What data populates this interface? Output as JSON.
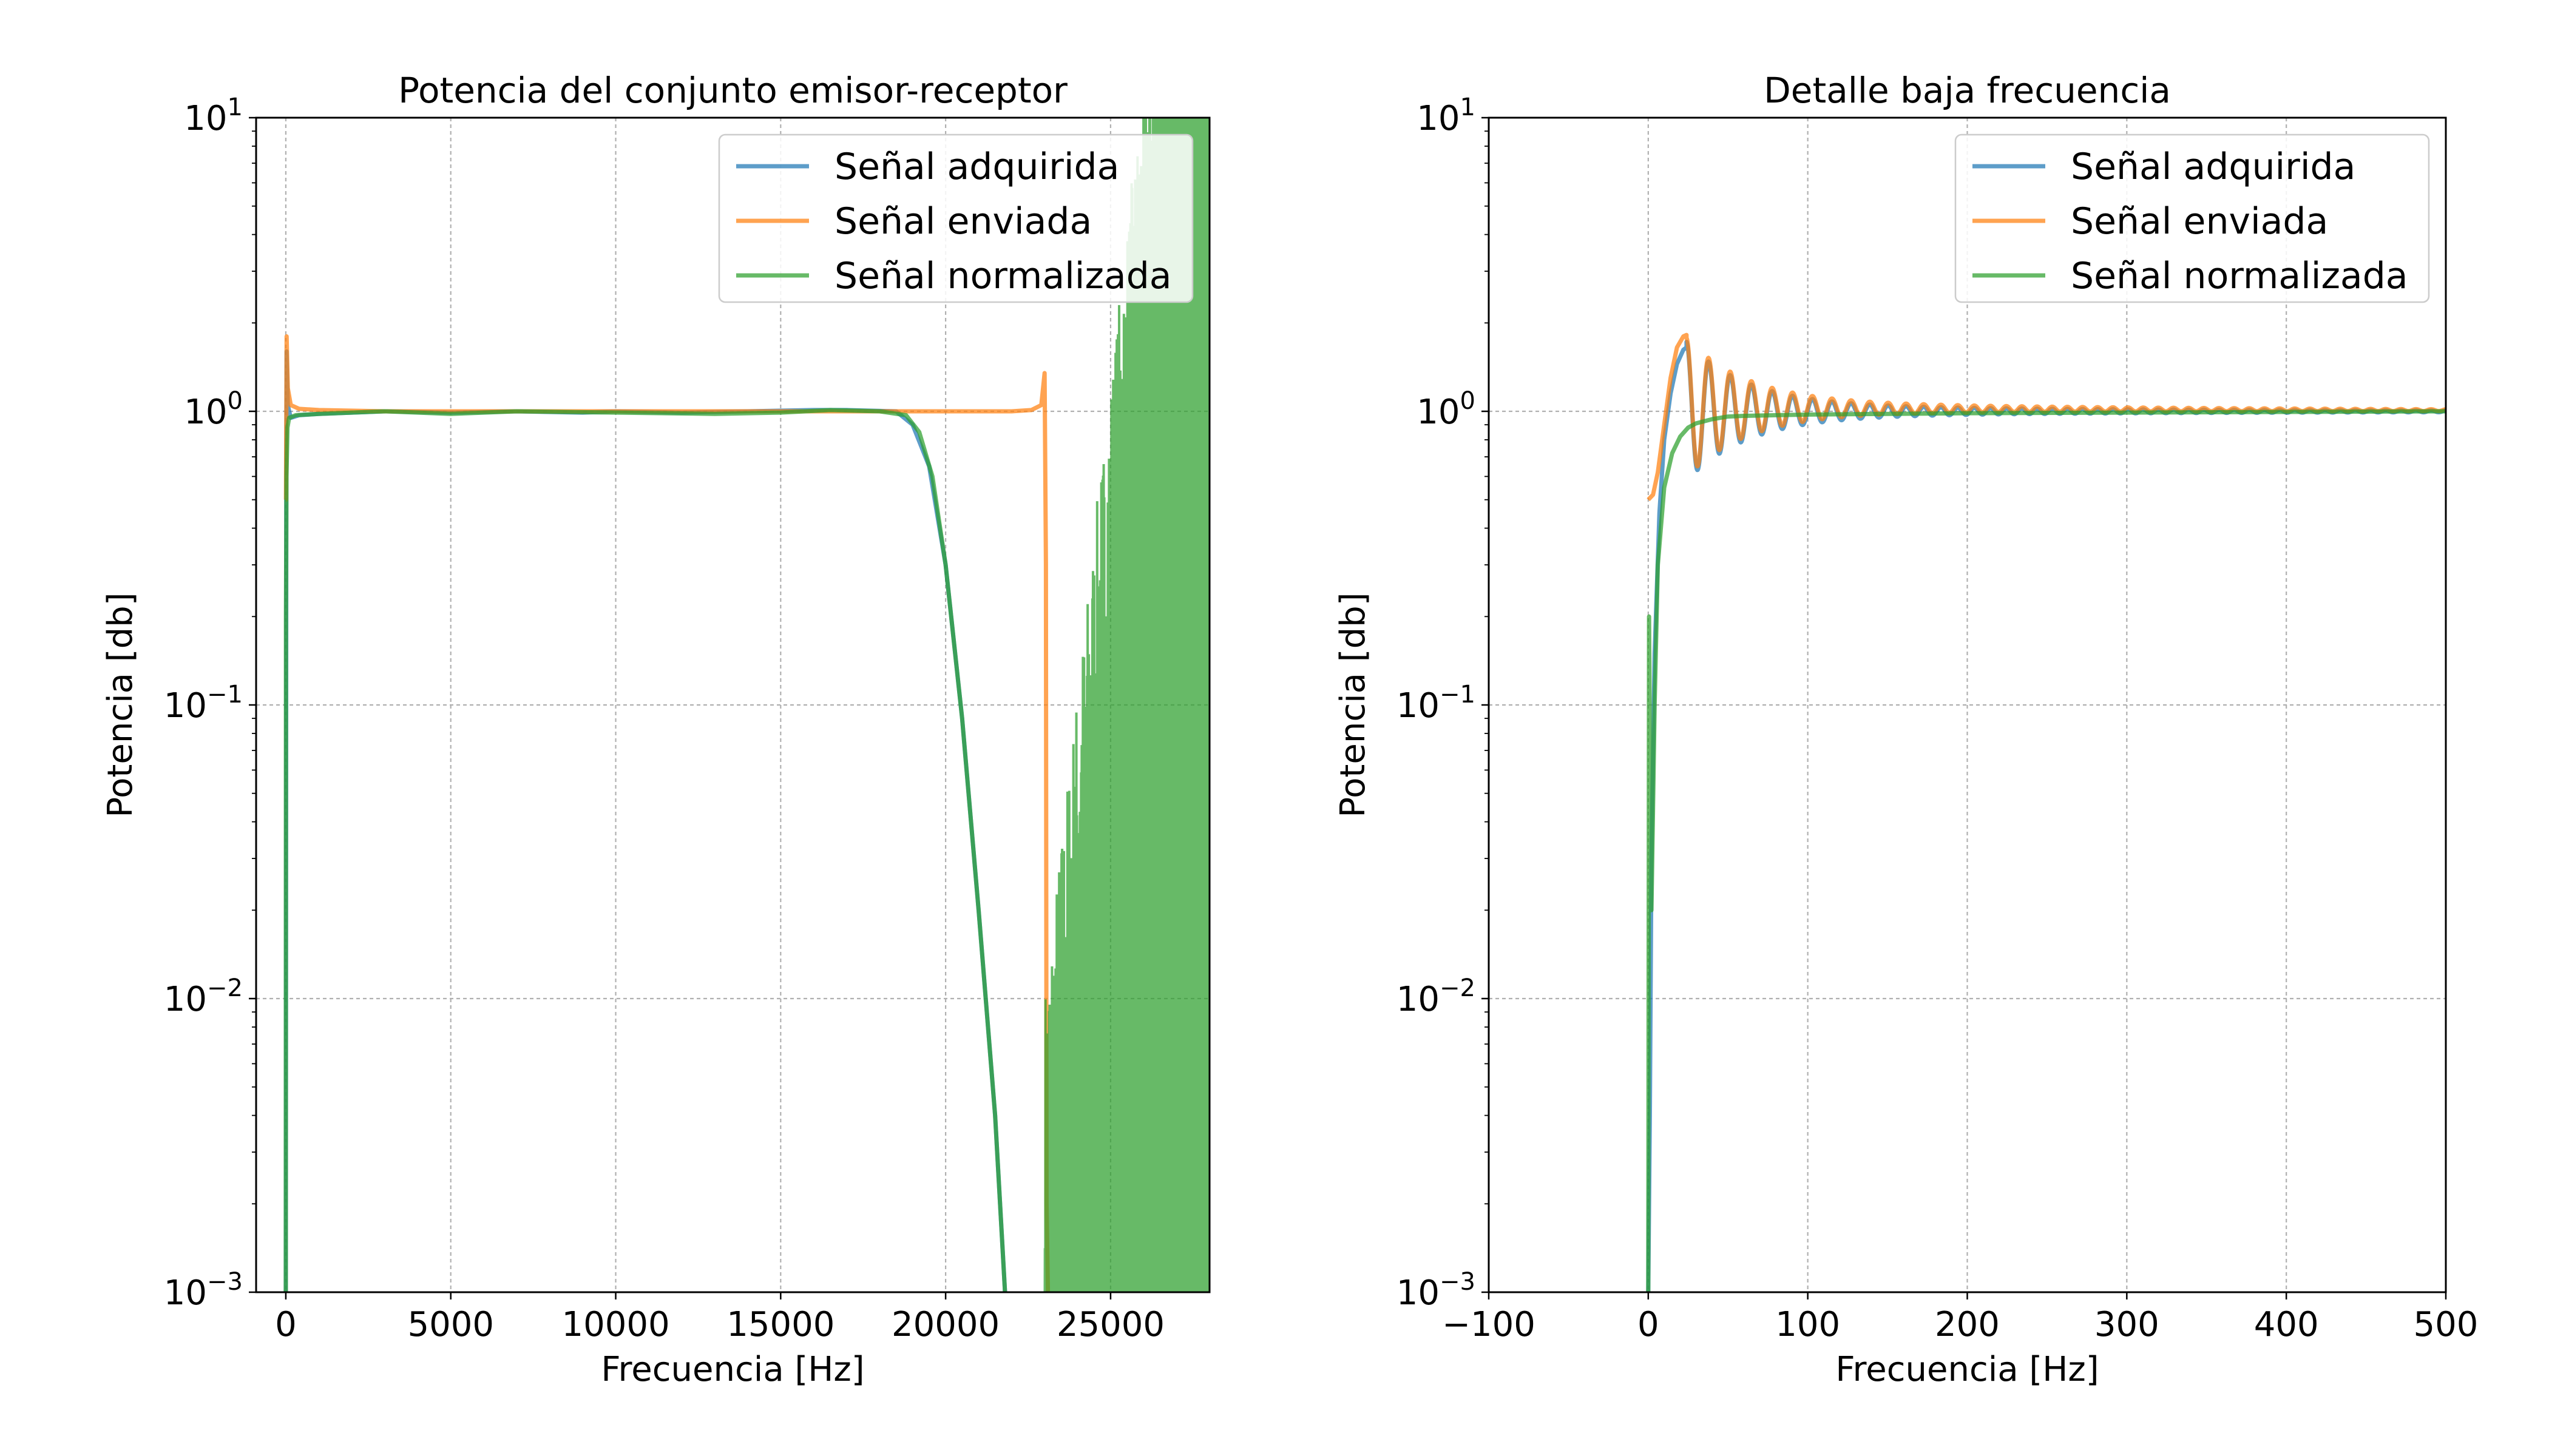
{
  "chart_data": [
    {
      "type": "line",
      "title": "Potencia del conjunto emisor-receptor",
      "xlabel": "Frecuencia [Hz]",
      "ylabel": "Potencia [db]",
      "xscale": "linear",
      "yscale": "log",
      "xlim": [
        -900,
        28000
      ],
      "ylim": [
        0.001,
        10
      ],
      "xticks": [
        0,
        5000,
        10000,
        15000,
        20000,
        25000
      ],
      "yticks": [
        {
          "value": 0.001,
          "base": "10",
          "exp": "−3"
        },
        {
          "value": 0.01,
          "base": "10",
          "exp": "−2"
        },
        {
          "value": 0.1,
          "base": "10",
          "exp": "−1"
        },
        {
          "value": 1,
          "base": "10",
          "exp": "0"
        },
        {
          "value": 10,
          "base": "10",
          "exp": "1"
        }
      ],
      "grid": true,
      "legend": "top-right",
      "series": [
        {
          "name": "Señal adquirida",
          "color": "#1f77b4",
          "x": [
            0,
            15,
            25,
            60,
            150,
            400,
            1000,
            2000,
            3000,
            5000,
            7000,
            9000,
            10000,
            12000,
            14000,
            16000,
            17000,
            18500,
            19000,
            19500,
            20000,
            20500,
            21000,
            21500,
            21800
          ],
          "y": [
            0.001,
            0.6,
            1.6,
            1.05,
            0.95,
            0.97,
            0.98,
            0.99,
            1.0,
            0.99,
            1.0,
            0.99,
            1.0,
            0.99,
            1.0,
            1.01,
            1.01,
            1.0,
            0.9,
            0.65,
            0.3,
            0.09,
            0.02,
            0.004,
            0.001
          ]
        },
        {
          "name": "Señal enviada",
          "color": "#ff7f0e",
          "x": [
            0,
            5,
            25,
            60,
            150,
            400,
            1000,
            3000,
            6000,
            10000,
            14000,
            18000,
            20000,
            21000,
            22000,
            22600,
            22900,
            23000,
            23040,
            23060,
            23100
          ],
          "y": [
            0.5,
            0.5,
            1.8,
            1.2,
            1.05,
            1.02,
            1.01,
            1.0,
            1.0,
            1.0,
            1.0,
            1.0,
            1.0,
            1.0,
            1.0,
            1.01,
            1.05,
            1.35,
            0.3,
            0.002,
            0.001
          ]
        },
        {
          "name": "Señal normalizada",
          "color": "#2ca02c",
          "x": [
            0,
            5,
            20,
            50,
            100,
            300,
            1000,
            3000,
            5000,
            7000,
            10000,
            13000,
            15000,
            16500,
            18000,
            18800,
            19200,
            19600,
            20000,
            20500,
            21000,
            21500,
            21800
          ],
          "y": [
            0.001,
            0.2,
            0.6,
            0.88,
            0.95,
            0.97,
            0.98,
            1.0,
            0.98,
            1.0,
            0.99,
            0.98,
            0.99,
            1.01,
            1.0,
            0.97,
            0.85,
            0.6,
            0.3,
            0.09,
            0.02,
            0.004,
            0.001
          ]
        }
      ],
      "noise_region": {
        "series": "Señal normalizada",
        "x_range": [
          23000,
          28000
        ],
        "color": "#2ca02c",
        "description": "dense oscillation rising from 10^-3 to above 10"
      }
    },
    {
      "type": "line",
      "title": "Detalle baja frecuencia",
      "xlabel": "Frecuencia [Hz]",
      "ylabel": "Potencia [db]",
      "xscale": "linear",
      "yscale": "log",
      "xlim": [
        -100,
        500
      ],
      "ylim": [
        0.001,
        10
      ],
      "xticks": [
        {
          "value": -100,
          "label": "−100"
        },
        {
          "value": 0,
          "label": "0"
        },
        {
          "value": 100,
          "label": "100"
        },
        {
          "value": 200,
          "label": "200"
        },
        {
          "value": 300,
          "label": "300"
        },
        {
          "value": 400,
          "label": "400"
        },
        {
          "value": 500,
          "label": "500"
        }
      ],
      "yticks": [
        {
          "value": 0.001,
          "base": "10",
          "exp": "−3"
        },
        {
          "value": 0.01,
          "base": "10",
          "exp": "−2"
        },
        {
          "value": 0.1,
          "base": "10",
          "exp": "−1"
        },
        {
          "value": 1,
          "base": "10",
          "exp": "0"
        },
        {
          "value": 10,
          "base": "10",
          "exp": "1"
        }
      ],
      "grid": true,
      "legend": "top-right",
      "series": [
        {
          "name": "Señal adquirida",
          "color": "#1f77b4",
          "x": [
            0,
            1,
            2,
            4,
            7,
            10,
            14,
            18,
            22,
            24
          ],
          "y": [
            0.001,
            0.004,
            0.03,
            0.15,
            0.45,
            0.8,
            1.15,
            1.45,
            1.62,
            1.65
          ],
          "ripple": {
            "x_start": 24,
            "x_end": 500,
            "period_start": 14,
            "period_end": 9.5,
            "amp_start": 0.5,
            "decay": 38,
            "bias": 0.0
          }
        },
        {
          "name": "Señal enviada",
          "color": "#ff7f0e",
          "x": [
            0,
            3,
            6,
            10,
            14,
            18,
            22,
            24
          ],
          "y": [
            0.5,
            0.52,
            0.62,
            0.9,
            1.3,
            1.65,
            1.8,
            1.82
          ],
          "ripple": {
            "x_start": 24,
            "x_end": 500,
            "period_start": 14,
            "period_end": 9.5,
            "amp_start": 0.5,
            "decay": 38,
            "bias": 0.03
          }
        },
        {
          "name": "Señal normalizada",
          "color": "#2ca02c",
          "x": [
            0,
            0.5,
            1,
            2,
            4,
            6,
            10,
            15,
            20,
            25,
            30,
            40,
            50,
            60,
            80,
            100,
            150,
            200,
            300,
            400,
            500
          ],
          "y": [
            0.001,
            0.2,
            0.08,
            0.02,
            0.1,
            0.3,
            0.55,
            0.72,
            0.82,
            0.88,
            0.91,
            0.94,
            0.96,
            0.965,
            0.97,
            0.975,
            0.98,
            0.985,
            0.99,
            0.995,
            1.0
          ]
        }
      ]
    }
  ]
}
